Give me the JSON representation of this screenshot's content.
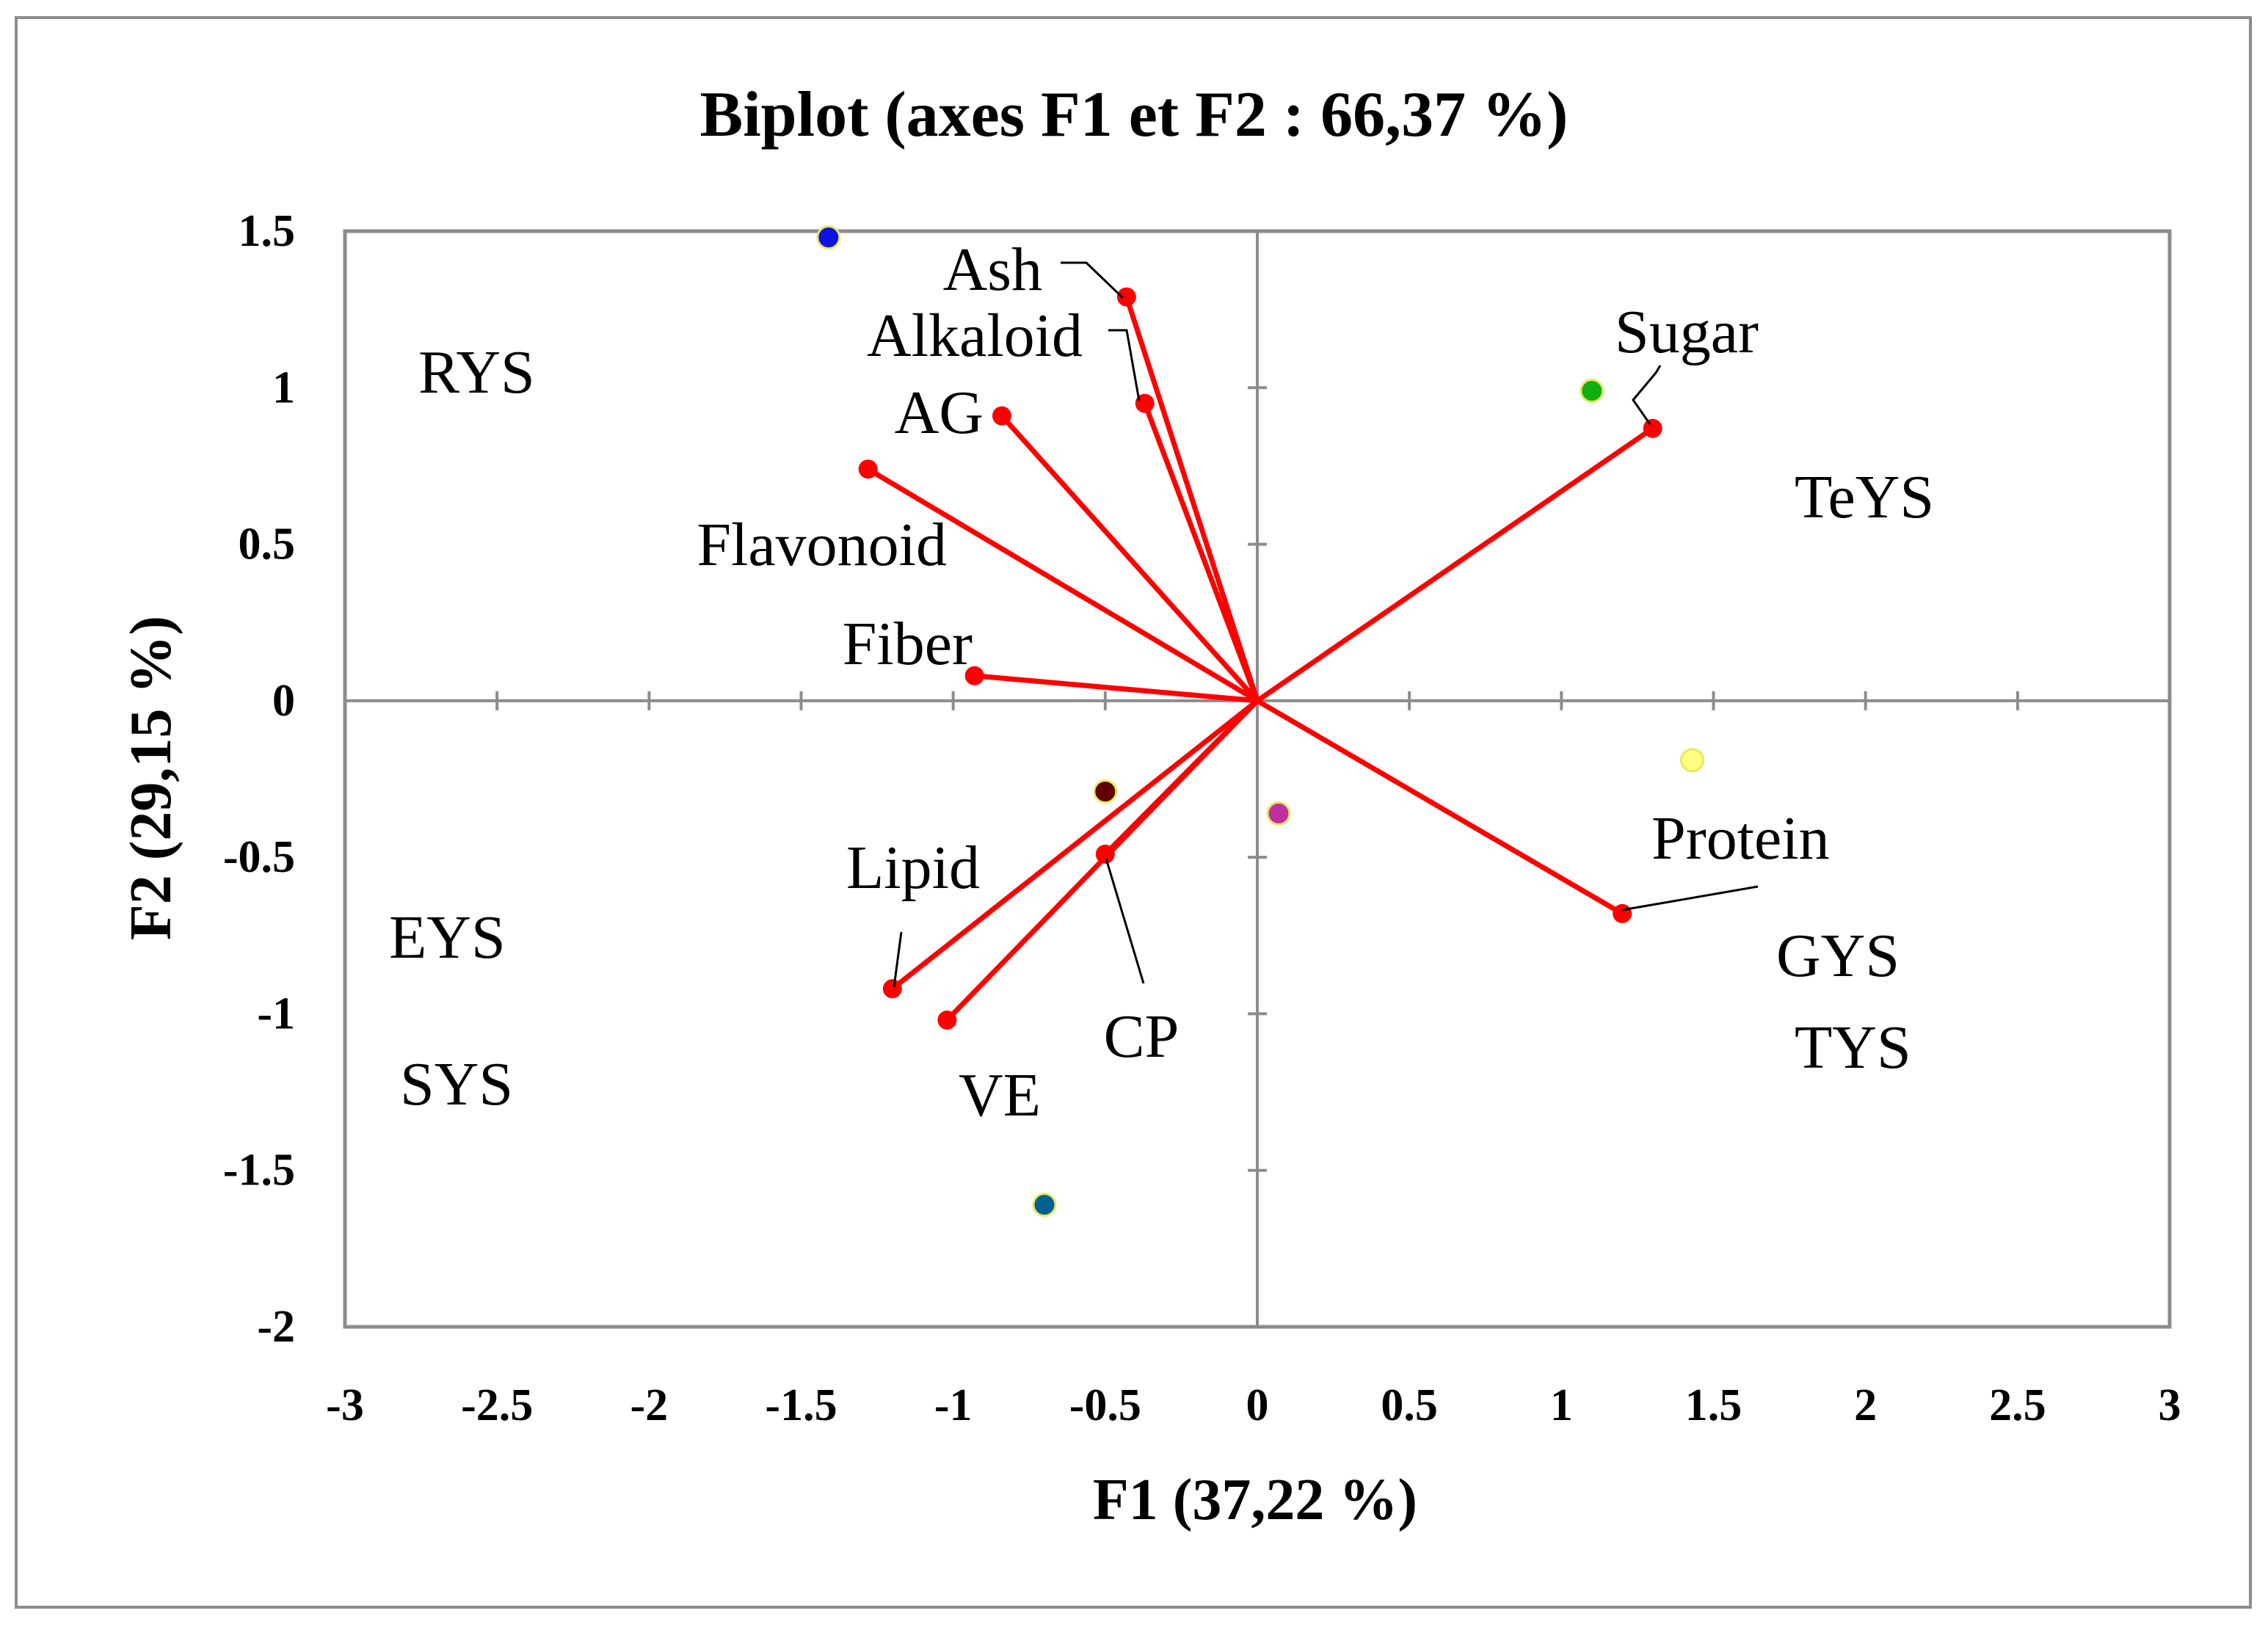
{
  "chart_data": {
    "type": "scatter",
    "title": "Biplot (axes F1 et F2 : 66,37 %)",
    "xlabel": "F1 (37,22 %)",
    "ylabel": "F2 (29,15 %)",
    "xlim": [
      -3,
      3
    ],
    "ylim": [
      -2,
      1.5
    ],
    "xticks": [
      "-3",
      "-2.5",
      "-2",
      "-1.5",
      "-1",
      "-0.5",
      "0",
      "0.5",
      "1",
      "1.5",
      "2",
      "2.5",
      "3"
    ],
    "yticks": [
      "1.5",
      "1",
      "0.5",
      "0",
      "-0.5",
      "-1",
      "-1.5",
      "-2"
    ],
    "grid": false,
    "legend": "none",
    "colors": {
      "vector": "#ff0000",
      "axis_line": "#8c8c8c",
      "frame": "#8c8c8c"
    },
    "variables": [
      {
        "name": "Ash",
        "x": -0.43,
        "y": 1.29
      },
      {
        "name": "Alkaloid",
        "x": -0.37,
        "y": 0.95
      },
      {
        "name": "AG",
        "x": -0.84,
        "y": 0.91
      },
      {
        "name": "Flavonoid",
        "x": -1.28,
        "y": 0.74
      },
      {
        "name": "Fiber",
        "x": -0.93,
        "y": 0.08
      },
      {
        "name": "Sugar",
        "x": 1.3,
        "y": 0.87
      },
      {
        "name": "Protein",
        "x": 1.2,
        "y": -0.68
      },
      {
        "name": "Lipid",
        "x": -1.2,
        "y": -0.92
      },
      {
        "name": "VE",
        "x": -1.02,
        "y": -1.02
      },
      {
        "name": "CP",
        "x": -0.5,
        "y": -0.49
      }
    ],
    "observations": [
      {
        "x": -1.41,
        "y": 1.48,
        "color": "#1010e0"
      },
      {
        "x": 1.1,
        "y": 0.99,
        "color": "#10b010"
      },
      {
        "x": 1.43,
        "y": -0.19,
        "color": "#ffff80"
      },
      {
        "x": -0.5,
        "y": -0.29,
        "color": "#600000"
      },
      {
        "x": 0.07,
        "y": -0.36,
        "color": "#c030a0"
      },
      {
        "x": -0.7,
        "y": -1.61,
        "color": "#006090"
      }
    ],
    "sample_labels": [
      "RYS",
      "TeYS",
      "EYS",
      "SYS",
      "GYS",
      "TYS"
    ]
  }
}
